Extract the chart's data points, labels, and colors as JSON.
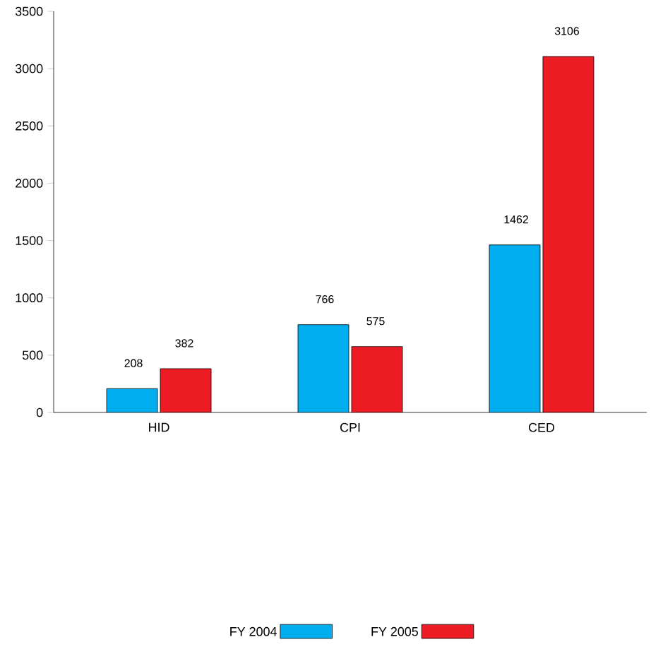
{
  "chart_data": {
    "type": "bar",
    "categories": [
      "HID",
      "CPI",
      "CED"
    ],
    "series": [
      {
        "name": "FY 2004",
        "color": "#00aeef",
        "values": [
          208,
          766,
          1462
        ]
      },
      {
        "name": "FY 2005",
        "color": "#ed1c24",
        "values": [
          382,
          575,
          3106
        ]
      }
    ],
    "ylim": [
      0,
      3500
    ],
    "yticks": [
      0,
      500,
      1000,
      1500,
      2000,
      2500,
      3000,
      3500
    ],
    "data_labels": true,
    "legend": "bottom",
    "grid": false
  }
}
